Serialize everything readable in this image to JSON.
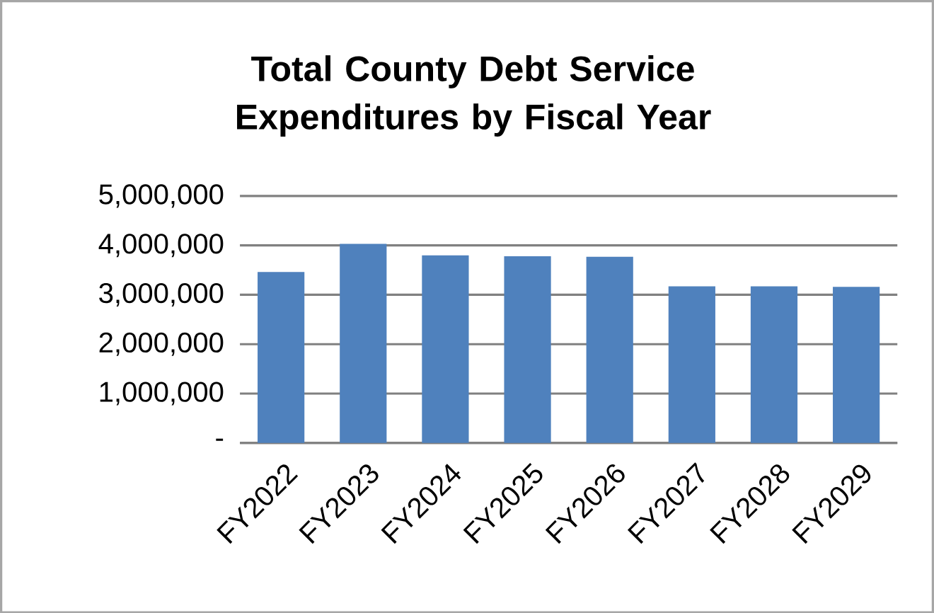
{
  "chart_data": {
    "type": "bar",
    "title": "Total County Debt Service Expenditures by Fiscal Year",
    "categories": [
      "FY2022",
      "FY2023",
      "FY2024",
      "FY2025",
      "FY2026",
      "FY2027",
      "FY2028",
      "FY2029"
    ],
    "values": [
      3460000,
      4030000,
      3800000,
      3780000,
      3770000,
      3170000,
      3170000,
      3160000
    ],
    "color": "#4f81bd",
    "ylim": [
      0,
      5000000
    ],
    "yticks": [
      {
        "value": 0,
        "label": "-"
      },
      {
        "value": 1000000,
        "label": "1,000,000"
      },
      {
        "value": 2000000,
        "label": "2,000,000"
      },
      {
        "value": 3000000,
        "label": "3,000,000"
      },
      {
        "value": 4000000,
        "label": "4,000,000"
      },
      {
        "value": 5000000,
        "label": "5,000,000"
      }
    ],
    "grid": "y"
  }
}
